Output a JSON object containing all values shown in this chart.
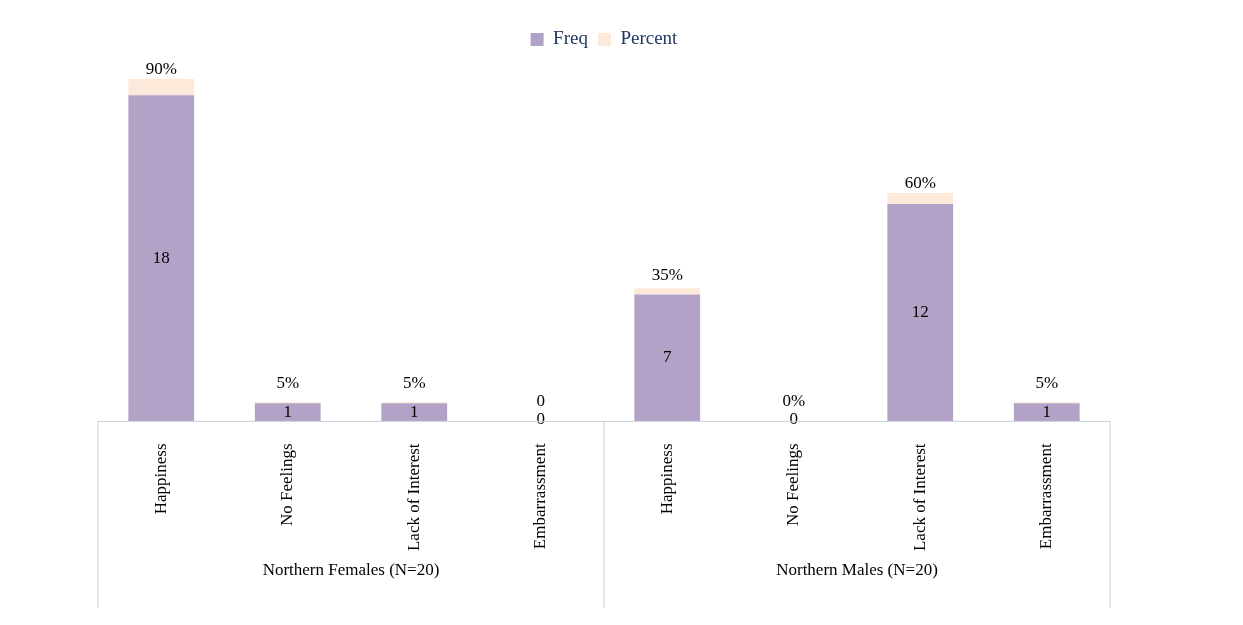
{
  "chart_data": {
    "type": "bar",
    "stacked": true,
    "legend": "top",
    "categories": [
      "Happiness",
      "No Feelings",
      "Lack of Interest",
      "Embarrassment",
      "Happiness",
      "No Feelings",
      "Lack of Interest",
      "Embarrassment"
    ],
    "series": [
      {
        "name": "Freq",
        "color": "#b3a2c7",
        "values": [
          18,
          1,
          1,
          0,
          7,
          0,
          12,
          1
        ],
        "value_labels": [
          "18",
          "1",
          "1",
          "0",
          "7",
          "0",
          "12",
          "1"
        ]
      },
      {
        "name": "Percent",
        "color": "#fde9d9",
        "values": [
          0.9,
          0.05,
          0.05,
          0,
          0.35,
          0,
          0.6,
          0.05
        ],
        "value_labels": [
          "90%",
          "5%",
          "5%",
          "0",
          "35%",
          "0%",
          "60%",
          "5%"
        ]
      }
    ],
    "annotations": [
      "Northern Females (N=20)",
      "Northern Males (N=20)"
    ]
  }
}
